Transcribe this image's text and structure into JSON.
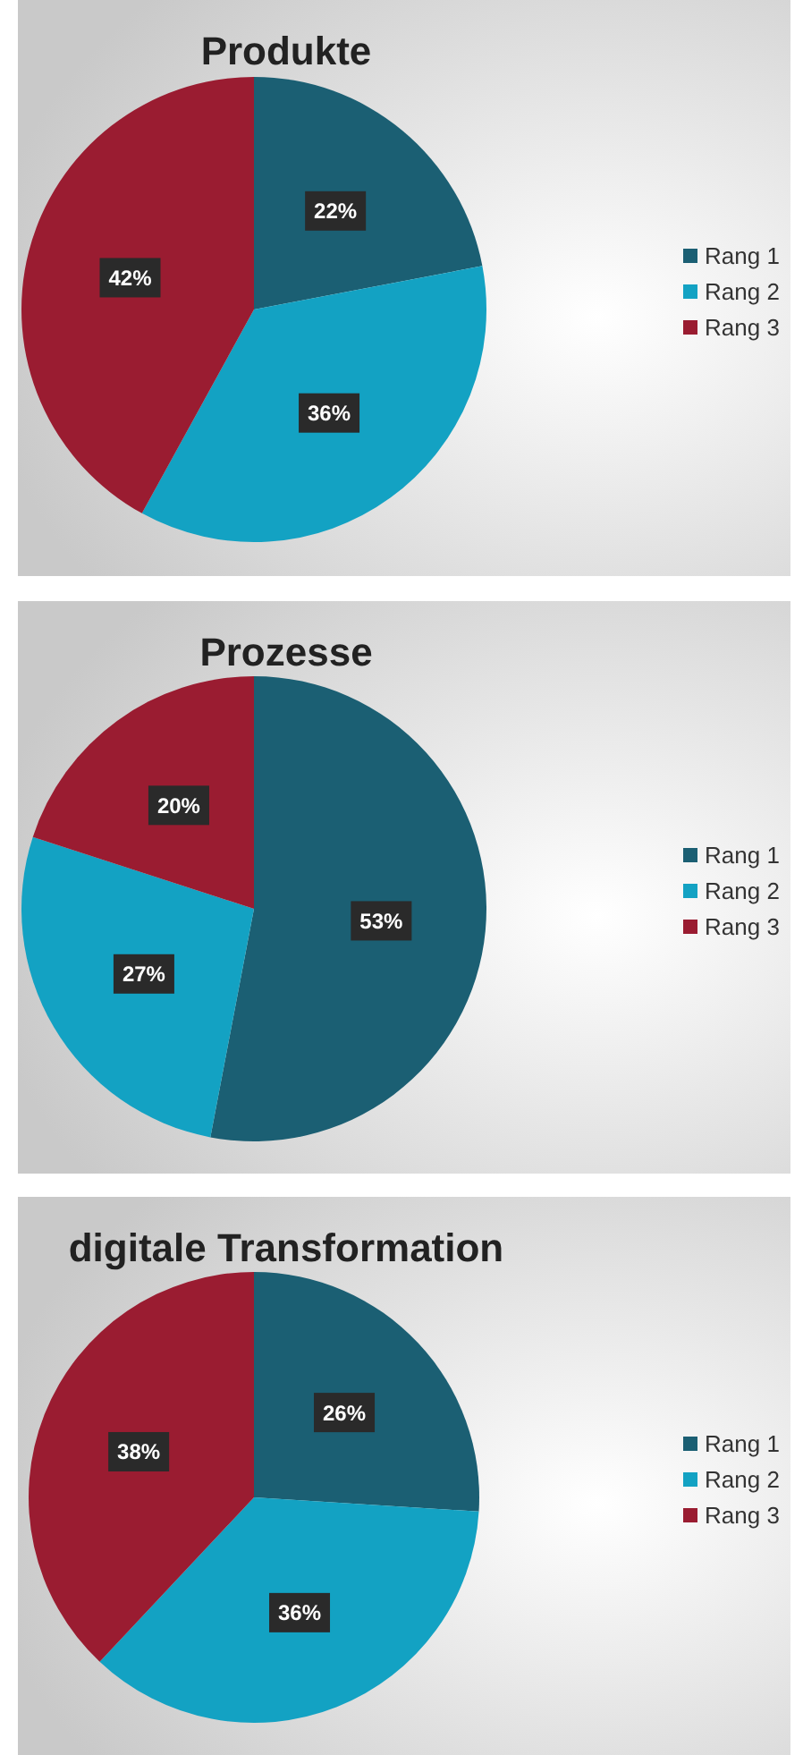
{
  "chart_data": [
    {
      "type": "pie",
      "title": "Produkte",
      "categories": [
        "Rang 1",
        "Rang 2",
        "Rang 3"
      ],
      "values": [
        22,
        36,
        42
      ],
      "value_labels": [
        "22%",
        "36%",
        "42%"
      ],
      "colors": [
        "#1b5f73",
        "#13a2c3",
        "#9a1c31"
      ],
      "legend": "right"
    },
    {
      "type": "pie",
      "title": "Prozesse",
      "categories": [
        "Rang 1",
        "Rang 2",
        "Rang 3"
      ],
      "values": [
        53,
        27,
        20
      ],
      "value_labels": [
        "53%",
        "27%",
        "20%"
      ],
      "colors": [
        "#1b5f73",
        "#13a2c3",
        "#9a1c31"
      ],
      "legend": "right"
    },
    {
      "type": "pie",
      "title": "digitale Transformation",
      "categories": [
        "Rang 1",
        "Rang 2",
        "Rang 3"
      ],
      "values": [
        26,
        36,
        38
      ],
      "value_labels": [
        "26%",
        "36%",
        "38%"
      ],
      "colors": [
        "#1b5f73",
        "#13a2c3",
        "#9a1c31"
      ],
      "legend": "right"
    }
  ]
}
